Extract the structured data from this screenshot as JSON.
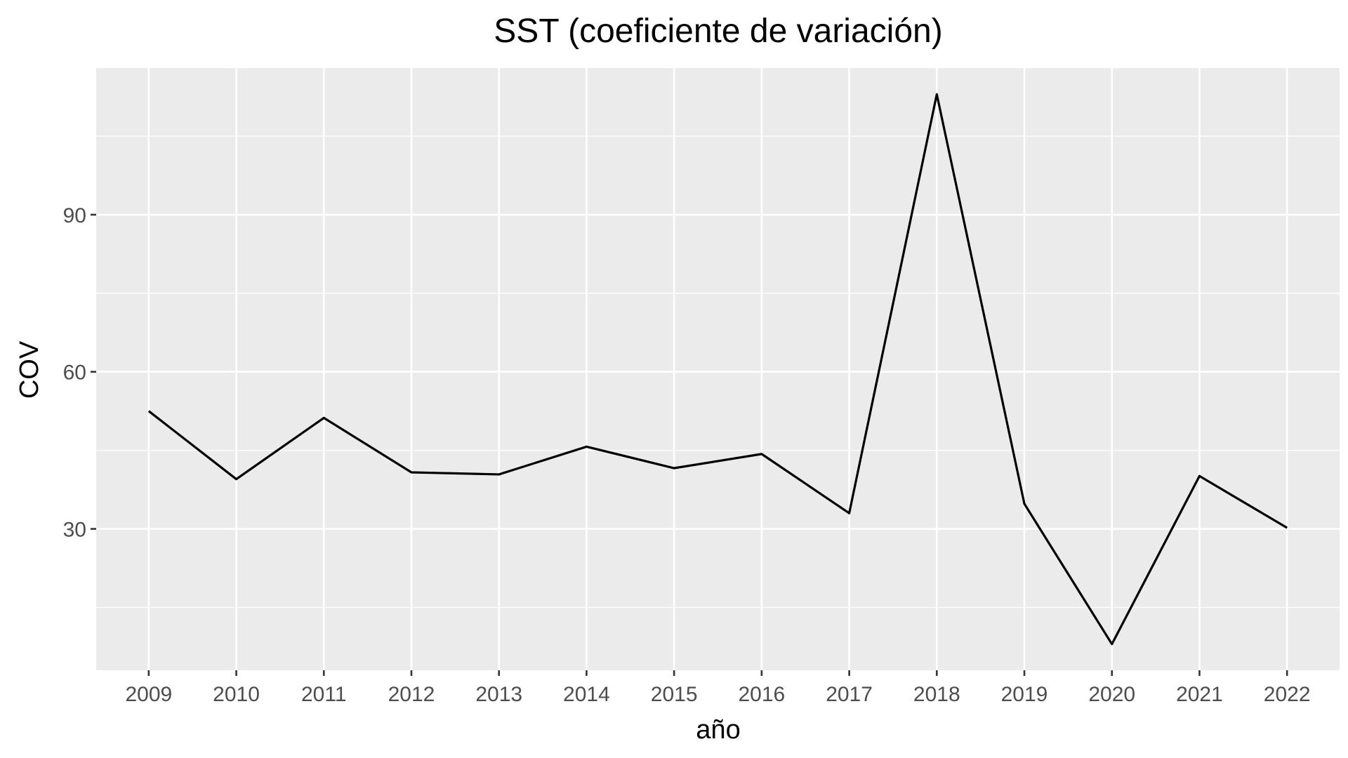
{
  "chart_data": {
    "type": "line",
    "title": "SST (coeficiente de variación)",
    "xlabel": "año",
    "ylabel": "COV",
    "x": [
      2009,
      2010,
      2011,
      2012,
      2013,
      2014,
      2015,
      2016,
      2017,
      2018,
      2019,
      2020,
      2021,
      2022
    ],
    "series": [
      {
        "values": [
          52.5,
          39.5,
          51.2,
          40.8,
          40.4,
          45.7,
          41.6,
          44.3,
          33.0,
          113.0,
          34.8,
          8.0,
          40.1,
          30.2
        ]
      }
    ],
    "ylim": [
      3,
      118
    ],
    "xlim": [
      2008.4,
      2022.6
    ],
    "y_ticks": [
      30,
      60,
      90
    ],
    "y_tick_labels": [
      "30",
      "60",
      "90"
    ],
    "x_tick_labels": [
      "2009",
      "2010",
      "2011",
      "2012",
      "2013",
      "2014",
      "2015",
      "2016",
      "2017",
      "2018",
      "2019",
      "2020",
      "2021",
      "2022"
    ],
    "grid": true,
    "legend": "none",
    "colors": {
      "panel_background": "#EBEBEB",
      "grid": "#FFFFFF",
      "line": "#000000",
      "tick_label": "#4D4D4D",
      "axis_tick": "#333333",
      "title": "#000000"
    }
  }
}
